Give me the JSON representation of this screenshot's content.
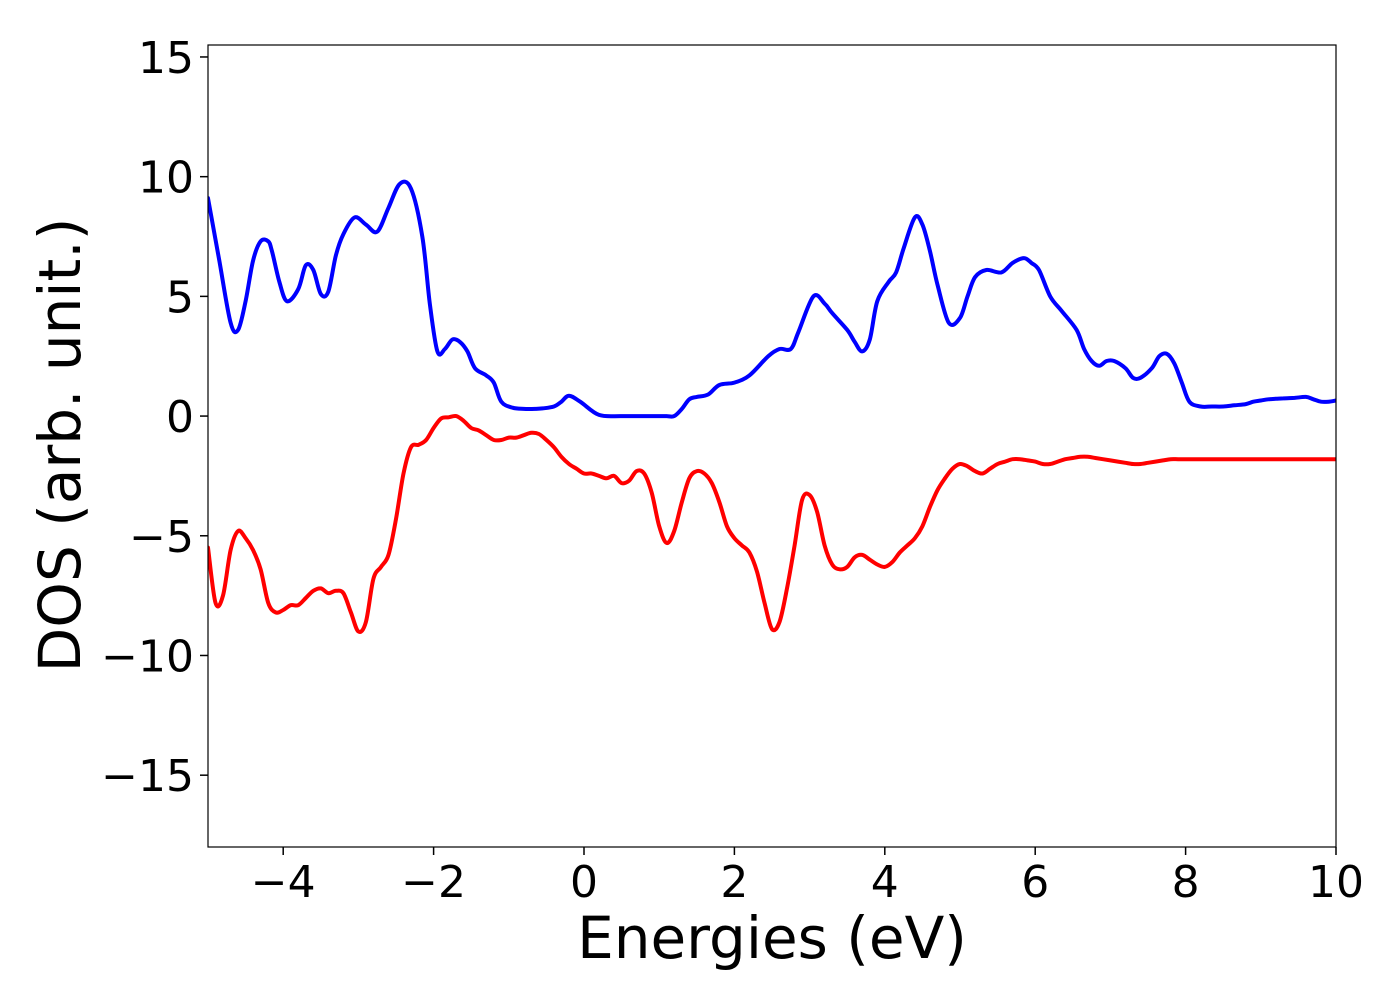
{
  "chart_data": {
    "type": "line",
    "title": "",
    "xlabel": "Energies (eV)",
    "ylabel": "DOS (arb. unit.)",
    "xlim": [
      -5,
      10
    ],
    "ylim": [
      -18,
      15.5
    ],
    "xticks": [
      -4,
      -2,
      0,
      2,
      4,
      6,
      8,
      10
    ],
    "xtick_labels": [
      "−4",
      "−2",
      "0",
      "2",
      "4",
      "6",
      "8",
      "10"
    ],
    "yticks": [
      15,
      10,
      5,
      0,
      -5,
      -10,
      -15
    ],
    "ytick_labels": [
      "15",
      "10",
      "5",
      "0",
      "−5",
      "−10",
      "−15"
    ],
    "grid": false,
    "legend": "none",
    "series": [
      {
        "color": "#0000ff",
        "x": [
          -5.0,
          -4.85,
          -4.7,
          -4.6,
          -4.5,
          -4.4,
          -4.3,
          -4.2,
          -4.15,
          -4.05,
          -3.95,
          -3.8,
          -3.7,
          -3.6,
          -3.5,
          -3.4,
          -3.3,
          -3.2,
          -3.05,
          -2.9,
          -2.75,
          -2.6,
          -2.45,
          -2.3,
          -2.15,
          -2.05,
          -1.95,
          -1.85,
          -1.75,
          -1.65,
          -1.55,
          -1.45,
          -1.3,
          -1.2,
          -1.1,
          -0.95,
          -0.8,
          -0.65,
          -0.55,
          -0.4,
          -0.3,
          -0.2,
          -0.05,
          0.2,
          0.5,
          0.8,
          1.0,
          1.1,
          1.2,
          1.3,
          1.4,
          1.5,
          1.65,
          1.8,
          2.0,
          2.2,
          2.45,
          2.6,
          2.75,
          2.85,
          3.05,
          3.2,
          3.3,
          3.5,
          3.6,
          3.7,
          3.8,
          3.9,
          4.05,
          4.15,
          4.25,
          4.4,
          4.5,
          4.6,
          4.7,
          4.85,
          5.0,
          5.1,
          5.2,
          5.35,
          5.55,
          5.7,
          5.85,
          5.95,
          6.05,
          6.2,
          6.35,
          6.55,
          6.65,
          6.75,
          6.85,
          6.95,
          7.05,
          7.2,
          7.3,
          7.4,
          7.55,
          7.65,
          7.75,
          7.85,
          7.95,
          8.05,
          8.2,
          8.35,
          8.5,
          8.65,
          8.8,
          8.9,
          9.0,
          9.1,
          9.2,
          9.3,
          9.45,
          9.6,
          9.7,
          9.8,
          9.9,
          10.0
        ],
        "y": [
          9.1,
          6.5,
          3.9,
          3.6,
          4.8,
          6.5,
          7.3,
          7.3,
          6.9,
          5.6,
          4.8,
          5.3,
          6.3,
          6.1,
          5.1,
          5.2,
          6.7,
          7.6,
          8.3,
          8.0,
          7.7,
          8.7,
          9.7,
          9.5,
          7.5,
          4.7,
          2.7,
          2.8,
          3.2,
          3.1,
          2.7,
          2.0,
          1.7,
          1.4,
          0.6,
          0.35,
          0.3,
          0.3,
          0.32,
          0.4,
          0.6,
          0.85,
          0.6,
          0.05,
          0.0,
          0.0,
          0.0,
          0.0,
          0.0,
          0.3,
          0.7,
          0.8,
          0.9,
          1.3,
          1.4,
          1.7,
          2.5,
          2.8,
          2.8,
          3.5,
          5.0,
          4.7,
          4.3,
          3.6,
          3.1,
          2.7,
          3.2,
          4.8,
          5.6,
          6.0,
          7.0,
          8.3,
          8.0,
          6.9,
          5.5,
          3.9,
          4.1,
          5.0,
          5.8,
          6.1,
          6.0,
          6.4,
          6.6,
          6.4,
          6.1,
          5.0,
          4.4,
          3.6,
          2.8,
          2.3,
          2.1,
          2.3,
          2.3,
          2.0,
          1.6,
          1.6,
          2.0,
          2.5,
          2.6,
          2.2,
          1.4,
          0.6,
          0.4,
          0.4,
          0.4,
          0.45,
          0.5,
          0.6,
          0.65,
          0.7,
          0.72,
          0.74,
          0.76,
          0.8,
          0.7,
          0.6,
          0.6,
          0.65
        ]
      },
      {
        "color": "#ff0000",
        "x": [
          -5.0,
          -4.9,
          -4.8,
          -4.7,
          -4.6,
          -4.5,
          -4.4,
          -4.3,
          -4.2,
          -4.1,
          -4.0,
          -3.9,
          -3.8,
          -3.7,
          -3.6,
          -3.5,
          -3.4,
          -3.3,
          -3.2,
          -3.1,
          -3.0,
          -2.9,
          -2.8,
          -2.7,
          -2.6,
          -2.5,
          -2.4,
          -2.3,
          -2.2,
          -2.1,
          -2.0,
          -1.9,
          -1.8,
          -1.7,
          -1.6,
          -1.5,
          -1.4,
          -1.3,
          -1.2,
          -1.1,
          -1.0,
          -0.9,
          -0.8,
          -0.7,
          -0.6,
          -0.5,
          -0.4,
          -0.3,
          -0.2,
          -0.1,
          0.0,
          0.1,
          0.2,
          0.3,
          0.4,
          0.5,
          0.6,
          0.7,
          0.8,
          0.9,
          1.0,
          1.1,
          1.2,
          1.3,
          1.4,
          1.5,
          1.6,
          1.7,
          1.8,
          1.9,
          2.0,
          2.1,
          2.2,
          2.3,
          2.4,
          2.5,
          2.6,
          2.7,
          2.8,
          2.9,
          3.0,
          3.1,
          3.2,
          3.3,
          3.4,
          3.5,
          3.6,
          3.7,
          3.8,
          3.9,
          4.0,
          4.1,
          4.2,
          4.3,
          4.4,
          4.5,
          4.6,
          4.7,
          4.8,
          4.9,
          5.0,
          5.1,
          5.2,
          5.3,
          5.4,
          5.5,
          5.6,
          5.7,
          5.8,
          5.9,
          6.0,
          6.1,
          6.2,
          6.3,
          6.4,
          6.5,
          6.6,
          6.7,
          6.8,
          6.9,
          7.0,
          7.1,
          7.2,
          7.3,
          7.4,
          7.5,
          7.6,
          7.7,
          7.8,
          7.9,
          8.0,
          8.1,
          8.2,
          8.3,
          8.4,
          8.5,
          8.6,
          8.7,
          8.8,
          8.9,
          9.0,
          9.1,
          9.2,
          9.3,
          9.4,
          9.5,
          9.6,
          9.7,
          9.8,
          9.9,
          10.0
        ],
        "y": [
          -5.5,
          -7.8,
          -7.5,
          -5.6,
          -4.8,
          -5.1,
          -5.6,
          -6.4,
          -7.8,
          -8.2,
          -8.1,
          -7.9,
          -7.9,
          -7.6,
          -7.3,
          -7.2,
          -7.4,
          -7.3,
          -7.4,
          -8.2,
          -9.0,
          -8.6,
          -6.8,
          -6.3,
          -5.8,
          -4.3,
          -2.4,
          -1.3,
          -1.2,
          -1.0,
          -0.5,
          -0.1,
          -0.05,
          0.0,
          -0.2,
          -0.5,
          -0.6,
          -0.8,
          -1.0,
          -1.0,
          -0.9,
          -0.9,
          -0.8,
          -0.7,
          -0.75,
          -1.0,
          -1.3,
          -1.7,
          -2.0,
          -2.2,
          -2.4,
          -2.4,
          -2.5,
          -2.6,
          -2.5,
          -2.8,
          -2.7,
          -2.3,
          -2.4,
          -3.2,
          -4.6,
          -5.3,
          -4.8,
          -3.6,
          -2.6,
          -2.3,
          -2.4,
          -2.8,
          -3.6,
          -4.6,
          -5.1,
          -5.4,
          -5.7,
          -6.5,
          -7.8,
          -8.9,
          -8.6,
          -7.2,
          -5.4,
          -3.5,
          -3.3,
          -4.0,
          -5.4,
          -6.2,
          -6.4,
          -6.3,
          -5.9,
          -5.8,
          -6.0,
          -6.2,
          -6.3,
          -6.1,
          -5.7,
          -5.4,
          -5.1,
          -4.6,
          -3.8,
          -3.1,
          -2.6,
          -2.2,
          -2.0,
          -2.1,
          -2.3,
          -2.4,
          -2.2,
          -2.0,
          -1.9,
          -1.8,
          -1.8,
          -1.85,
          -1.9,
          -2.0,
          -2.0,
          -1.9,
          -1.8,
          -1.75,
          -1.7,
          -1.7,
          -1.75,
          -1.8,
          -1.85,
          -1.9,
          -1.95,
          -2.0,
          -2.0,
          -1.95,
          -1.9,
          -1.85,
          -1.8,
          -1.8,
          -1.8,
          -1.8,
          -1.8,
          -1.8,
          -1.8,
          -1.8,
          -1.8,
          -1.8,
          -1.8,
          -1.8,
          -1.8,
          -1.8,
          -1.8,
          -1.8,
          -1.8,
          -1.8,
          -1.8,
          -1.8,
          -1.8,
          -1.8,
          -1.8
        ]
      }
    ]
  }
}
